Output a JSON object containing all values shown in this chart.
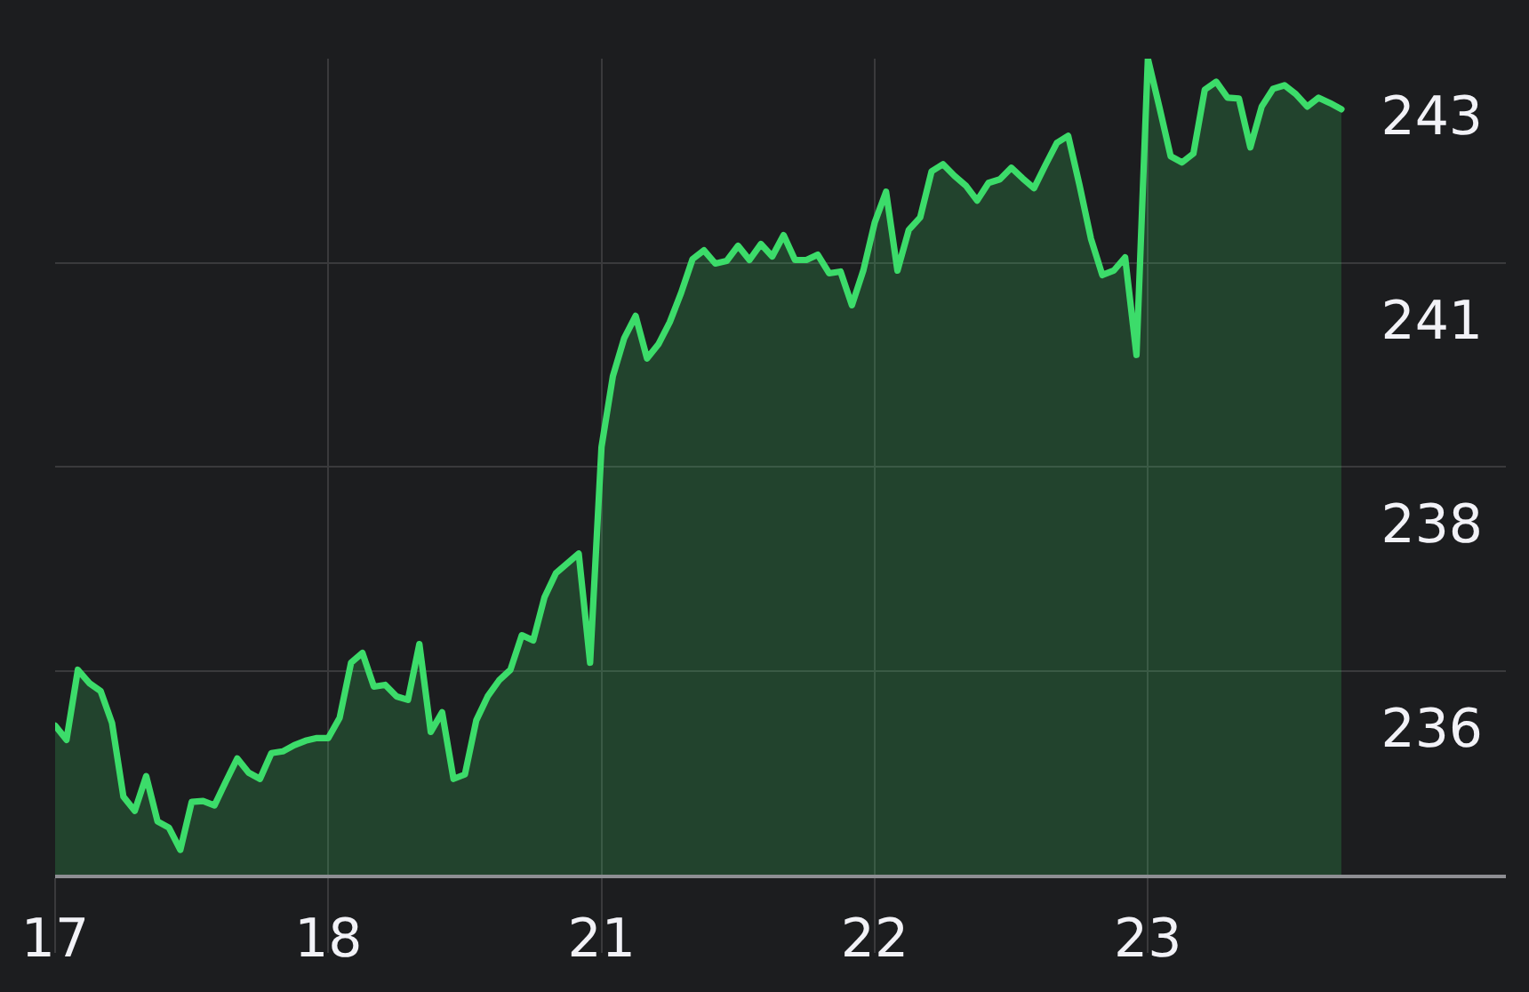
{
  "chart_data": {
    "type": "area",
    "color": "#3cdc6a",
    "categories": [
      "17",
      null,
      null,
      null,
      null,
      null,
      null,
      null,
      null,
      null,
      null,
      null,
      null,
      null,
      null,
      null,
      null,
      null,
      null,
      null,
      null,
      null,
      null,
      null,
      "18",
      null,
      null,
      null,
      null,
      null,
      null,
      null,
      null,
      null,
      null,
      null,
      null,
      null,
      null,
      null,
      null,
      null,
      null,
      null,
      null,
      null,
      null,
      null,
      "21",
      null,
      null,
      null,
      null,
      null,
      null,
      null,
      null,
      null,
      null,
      null,
      null,
      null,
      null,
      null,
      null,
      null,
      null,
      null,
      null,
      null,
      null,
      null,
      "22",
      null,
      null,
      null,
      null,
      null,
      null,
      null,
      null,
      null,
      null,
      null,
      null,
      null,
      null,
      null,
      null,
      null,
      null,
      null,
      null,
      null,
      null,
      null,
      "23",
      null,
      null,
      null,
      null,
      null,
      null,
      null,
      null,
      null,
      null,
      null,
      null,
      null,
      null,
      null,
      null,
      null
    ],
    "values": [
      235.38,
      235.22,
      236.01,
      235.86,
      235.77,
      235.41,
      234.58,
      234.42,
      234.81,
      234.3,
      234.23,
      233.98,
      234.52,
      234.53,
      234.48,
      234.75,
      235.01,
      234.85,
      234.78,
      235.07,
      235.09,
      235.16,
      235.21,
      235.24,
      235.24,
      235.47,
      236.09,
      236.2,
      235.82,
      235.84,
      235.71,
      235.67,
      236.3,
      235.31,
      235.53,
      234.78,
      234.83,
      235.44,
      235.71,
      235.89,
      236.01,
      236.4,
      236.34,
      236.83,
      237.1,
      237.21,
      237.32,
      236.09,
      238.52,
      239.32,
      239.75,
      240.0,
      239.52,
      239.68,
      239.93,
      240.26,
      240.64,
      240.74,
      240.59,
      240.62,
      240.79,
      240.63,
      240.81,
      240.67,
      240.91,
      240.63,
      240.63,
      240.69,
      240.48,
      240.5,
      240.12,
      240.51,
      241.05,
      241.4,
      240.51,
      240.97,
      241.11,
      241.63,
      241.71,
      241.58,
      241.47,
      241.3,
      241.5,
      241.54,
      241.67,
      241.55,
      241.44,
      241.7,
      241.95,
      242.03,
      241.47,
      240.87,
      240.46,
      240.51,
      240.66,
      239.56,
      242.9,
      242.36,
      241.8,
      241.73,
      241.83,
      242.55,
      242.64,
      242.46,
      242.45,
      241.9,
      242.36,
      242.56,
      242.6,
      242.5,
      242.36,
      242.46,
      242.4,
      242.33
    ],
    "ylim": [
      233.7,
      242.9
    ],
    "yticks": [
      {
        "value": 233.7,
        "label": null
      },
      {
        "value": 236.0,
        "label": "236"
      },
      {
        "value": 238.3,
        "label": "238"
      },
      {
        "value": 240.6,
        "label": "241"
      },
      {
        "value": 242.9,
        "label": "243"
      }
    ],
    "grid": true
  }
}
